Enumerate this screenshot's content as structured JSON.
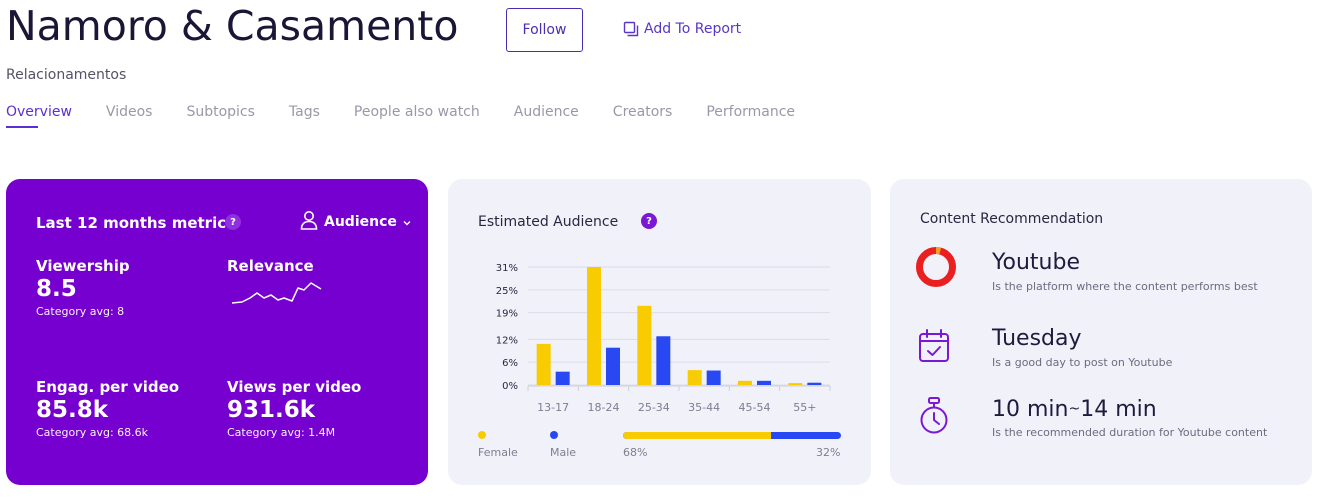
{
  "header": {
    "title": "Namoro & Casamento",
    "follow_label": "Follow",
    "add_report_label": "Add To Report",
    "subtitle": "Relacionamentos"
  },
  "tabs": [
    {
      "label": "Overview",
      "active": true
    },
    {
      "label": "Videos"
    },
    {
      "label": "Subtopics"
    },
    {
      "label": "Tags"
    },
    {
      "label": "People also watch"
    },
    {
      "label": "Audience"
    },
    {
      "label": "Creators"
    },
    {
      "label": "Performance"
    }
  ],
  "metrics_card": {
    "heading": "Last 12 months metrics",
    "help": "?",
    "audience_dropdown": "Audience",
    "viewership": {
      "label": "Viewership",
      "value": "8.5",
      "avg": "Category avg: 8"
    },
    "relevance": {
      "label": "Relevance"
    },
    "engagement": {
      "label": "Engag. per video",
      "value": "85.8k",
      "avg": "Category avg: 68.6k"
    },
    "views": {
      "label": "Views per video",
      "value": "931.6k",
      "avg": "Category avg: 1.4M"
    },
    "colors": {
      "background": "#7500cf"
    }
  },
  "audience_card": {
    "heading": "Estimated Audience",
    "help": "?",
    "legend_female": "Female",
    "legend_male": "Male",
    "female_pct_label": "68%",
    "male_pct_label": "32%",
    "female_share": 0.68,
    "colors": {
      "female": "#f8cc00",
      "male": "#2748f2"
    }
  },
  "chart_data": {
    "type": "bar",
    "categories": [
      "13-17",
      "18-24",
      "25-34",
      "35-44",
      "45-54",
      "55+"
    ],
    "series": [
      {
        "name": "Female",
        "values": [
          10.8,
          31,
          20.8,
          3.9,
          1.1,
          0.5
        ],
        "color": "#f8cc00"
      },
      {
        "name": "Male",
        "values": [
          3.5,
          9.8,
          12.8,
          3.8,
          1.1,
          0.6
        ],
        "color": "#2748f2"
      }
    ],
    "y_ticks": [
      "0%",
      "6%",
      "12%",
      "19%",
      "25%",
      "31%"
    ],
    "ylim": [
      0,
      31
    ],
    "grid": true
  },
  "content_card": {
    "heading": "Content Recommendation",
    "platform": {
      "title": "Youtube",
      "desc": "Is the platform where the content performs best",
      "icon": "donut-chart-icon"
    },
    "day": {
      "title": "Tuesday",
      "desc": "Is a good day to post on Youtube",
      "icon": "calendar-check-icon"
    },
    "duration": {
      "from": "10 min",
      "sep": "~",
      "to": "14 min",
      "desc": "Is the recommended duration for Youtube content",
      "icon": "stopwatch-icon"
    },
    "colors": {
      "accent": "#7a18d4",
      "platform_red": "#ea1f1f",
      "platform_orange": "#f0a020"
    }
  }
}
